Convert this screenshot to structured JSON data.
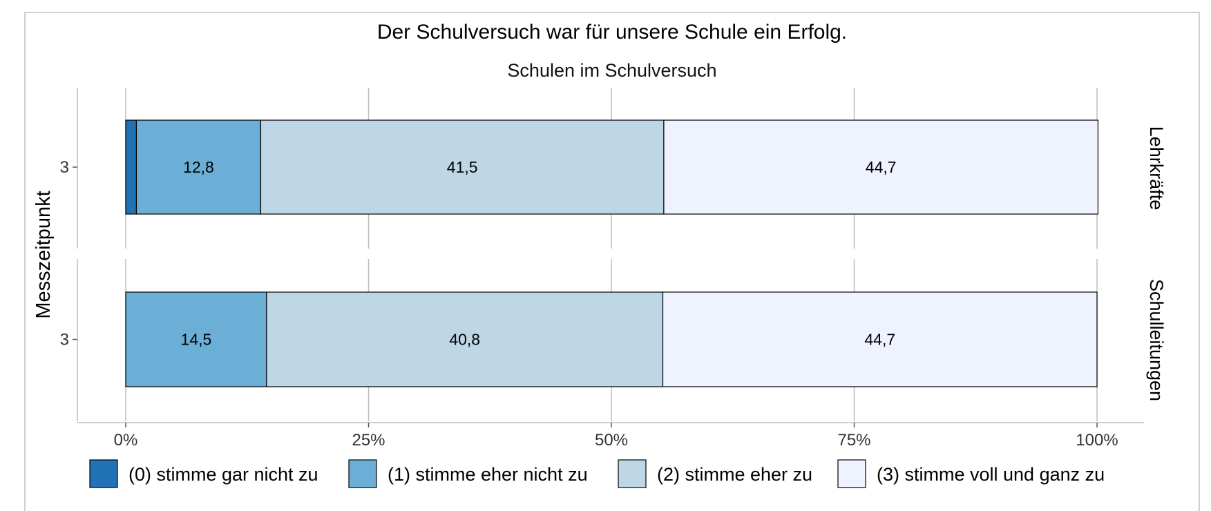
{
  "chart_data": {
    "type": "bar",
    "orientation": "horizontal",
    "stacked": "percent",
    "title": "Der Schulversuch war für unsere Schule ein Erfolg.",
    "subtitle": "Schulen im Schulversuch",
    "ylabel": "Messzeitpunkt",
    "xlim": [
      0,
      100
    ],
    "x_ticks": [
      "0%",
      "25%",
      "50%",
      "75%",
      "100%"
    ],
    "x_tick_values": [
      0,
      25,
      50,
      75,
      100
    ],
    "grid": true,
    "legend_position": "bottom",
    "legend": [
      {
        "name": "(0) stimme gar nicht zu",
        "color": "#2171b5"
      },
      {
        "name": "(1) stimme eher nicht zu",
        "color": "#6baed6"
      },
      {
        "name": "(2) stimme eher zu",
        "color": "#bdd7e7"
      },
      {
        "name": "(3) stimme voll und ganz zu",
        "color": "#eff3ff"
      }
    ],
    "facets": [
      {
        "name": "Lehrkräfte",
        "category": "3",
        "values": [
          1.1,
          12.8,
          41.5,
          44.7
        ],
        "labels": [
          "",
          "12,8",
          "41,5",
          "44,7"
        ]
      },
      {
        "name": "Schulleitungen",
        "category": "3",
        "values": [
          0,
          14.5,
          40.8,
          44.7
        ],
        "labels": [
          "",
          "14,5",
          "40,8",
          "44,7"
        ]
      }
    ]
  }
}
